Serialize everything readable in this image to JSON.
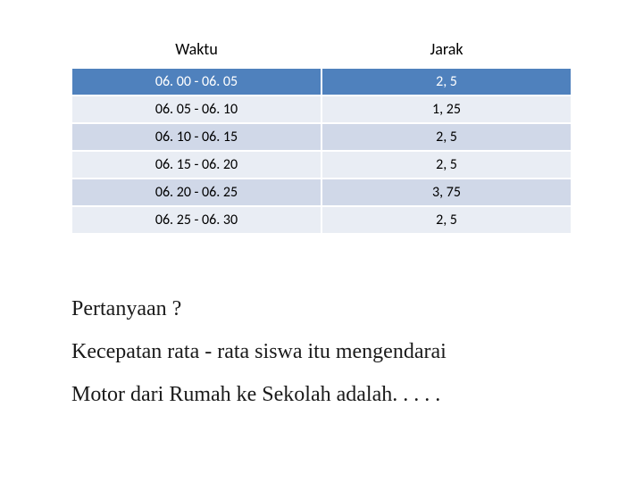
{
  "table": {
    "header_bg": "#ffffff",
    "header_color": "#000000",
    "highlight_bg": "#4f81bd",
    "highlight_color": "#ffffff",
    "stripe_a_bg": "#e9edf4",
    "stripe_b_bg": "#d0d8e8",
    "cell_color": "#000000",
    "columns": [
      "Waktu",
      "Jarak"
    ],
    "rows": [
      {
        "cells": [
          "06. 00 - 06. 05",
          "2, 5"
        ],
        "style": "highlight"
      },
      {
        "cells": [
          "06. 05 - 06. 10",
          "1, 25"
        ],
        "style": "a"
      },
      {
        "cells": [
          "06. 10 - 06. 15",
          "2, 5"
        ],
        "style": "b"
      },
      {
        "cells": [
          "06. 15 - 06. 20",
          "2, 5"
        ],
        "style": "a"
      },
      {
        "cells": [
          "06. 20 - 06. 25",
          "3, 75"
        ],
        "style": "b"
      },
      {
        "cells": [
          "06. 25 - 06. 30",
          "2, 5"
        ],
        "style": "a"
      }
    ]
  },
  "question": {
    "line1": "Pertanyaan ?",
    "line2": "Kecepatan rata - rata siswa itu mengendarai",
    "line3": "Motor dari Rumah ke Sekolah adalah. . . . ."
  }
}
